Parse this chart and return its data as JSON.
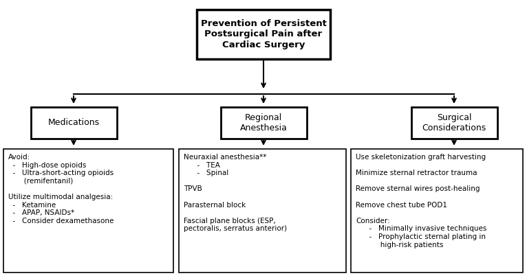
{
  "title": "Prevention of Persistent\nPostsurgical Pain after\nCardiac Surgery",
  "level2": [
    "Medications",
    "Regional\nAnesthesia",
    "Surgical\nConsiderations"
  ],
  "level3_0": "Avoid:\n  -   High-dose opioids\n  -   Ultra-short-acting opioids\n       (remifentanil)\n\nUtilize multimodal analgesia:\n  -   Ketamine\n  -   APAP, NSAIDs*\n  -   Consider dexamethasone",
  "level3_1": "Neuraxial anesthesia**\n      -   TEA\n      -   Spinal\n\nTPVB\n\nParasternal block\n\nFascial plane blocks (ESP,\npectoralis, serratus anterior)",
  "level3_2": "Use skeletonization graft harvesting\n\nMinimize sternal retractor trauma\n\nRemove sternal wires post-healing\n\nRemove chest tube POD1\n\nConsider:\n      -   Minimally invasive techniques\n      -   Prophylactic sternal plating in\n           high-risk patients",
  "bg_color": "#ffffff",
  "box_edge_color": "#000000",
  "text_color": "#000000",
  "line_color": "#000000",
  "title_fontsize": 9.5,
  "label_fontsize": 9.0,
  "body_fontsize": 7.5,
  "fig_w": 7.66,
  "fig_h": 4.05,
  "dpi": 100
}
